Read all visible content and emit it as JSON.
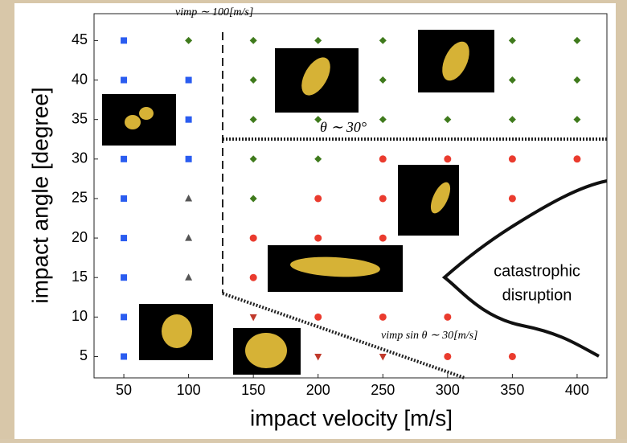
{
  "chart_data": {
    "type": "scatter",
    "xlabel": "impact velocity [m/s]",
    "ylabel": "impact angle [degree]",
    "xlim": [
      27,
      423
    ],
    "ylim": [
      2.3,
      48.4
    ],
    "xticks": [
      50,
      100,
      150,
      200,
      250,
      300,
      350,
      400
    ],
    "yticks": [
      5,
      10,
      15,
      20,
      25,
      30,
      35,
      40,
      45
    ],
    "annotations": [
      "vimp ∼ 100[m/s]",
      "θ ∼ 30°",
      "vimp sin θ ∼ 30[m/s]",
      "catastrophic",
      "disruption"
    ],
    "series": [
      {
        "marker": "square",
        "color": "#2a5cf0",
        "x": [
          50,
          50,
          50,
          50,
          50,
          50,
          50,
          50,
          100,
          100,
          100
        ],
        "values": [
          45,
          40,
          30,
          25,
          20,
          15,
          10,
          5,
          40,
          35,
          30
        ]
      },
      {
        "marker": "diamond",
        "color": "#3f7a1c",
        "x": [
          100,
          150,
          150,
          150,
          150,
          150,
          200,
          200,
          200,
          250,
          250,
          250,
          300,
          350,
          350,
          350,
          400,
          400,
          400
        ],
        "values": [
          45,
          45,
          40,
          35,
          30,
          25,
          45,
          35,
          30,
          45,
          40,
          35,
          35,
          45,
          40,
          35,
          45,
          40,
          35
        ]
      },
      {
        "marker": "circle",
        "color": "#ea3b2e",
        "x": [
          250,
          300,
          350,
          400,
          200,
          250,
          350,
          150,
          200,
          250,
          150,
          200,
          250,
          300,
          300,
          350
        ],
        "values": [
          30,
          30,
          30,
          30,
          25,
          25,
          25,
          20,
          20,
          20,
          15,
          10,
          10,
          10,
          5,
          5
        ]
      },
      {
        "marker": "triangle",
        "color": "#555555",
        "x": [
          100,
          100,
          100
        ],
        "values": [
          25,
          20,
          15
        ]
      },
      {
        "marker": "triangle-down",
        "color": "#c0392b",
        "x": [
          150,
          200,
          250
        ],
        "values": [
          10,
          5,
          5
        ]
      }
    ]
  }
}
